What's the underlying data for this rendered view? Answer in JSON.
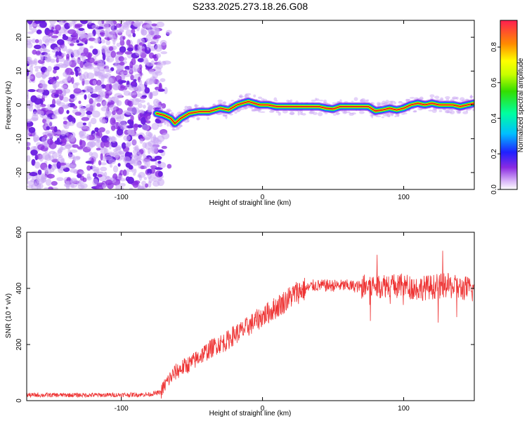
{
  "title": "S233.2025.273.18.26.G08",
  "colors": {
    "snr_line": "#ee3333",
    "noise_dots": "#8a2be2",
    "ridge_core": "#e5141c"
  },
  "chart_data": [
    {
      "type": "heatmap",
      "panel": "spectrogram",
      "xlabel": "Height of straight line (km)",
      "ylabel": "Frequency (Hz)",
      "xlim": [
        -167,
        150
      ],
      "ylim": [
        -25,
        25
      ],
      "xticks": [
        -100,
        0,
        100
      ],
      "xtick_labels": [
        "-100",
        "0",
        "100"
      ],
      "yticks": [
        -20,
        -10,
        0,
        10,
        20
      ],
      "ytick_labels": [
        "-20",
        "-10",
        "0",
        "10",
        "20"
      ],
      "colorbar": {
        "label": "Normalized spectral amplitude",
        "range": [
          0.0,
          0.95
        ],
        "ticks": [
          0.0,
          0.2,
          0.4,
          0.6,
          0.8
        ],
        "tick_labels": [
          "0.0",
          "0.2",
          "0.4",
          "0.6",
          "0.8"
        ],
        "colormap": "rainbow"
      },
      "noise_region_x": [
        -167,
        -72
      ],
      "ridge": {
        "x": [
          -75,
          -70,
          -65,
          -62,
          -58,
          -52,
          -45,
          -38,
          -30,
          -24,
          -18,
          -14,
          -10,
          -6,
          -2,
          4,
          10,
          20,
          30,
          40,
          45,
          50,
          55,
          60,
          70,
          75,
          80,
          85,
          90,
          95,
          100,
          105,
          110,
          115,
          120,
          125,
          130,
          135,
          140,
          145,
          150
        ],
        "freq": [
          -2.5,
          -3,
          -4,
          -5.5,
          -4,
          -2.5,
          -2,
          -2,
          -1,
          -1.5,
          0,
          0.5,
          1,
          0.5,
          0,
          0,
          -0.5,
          -0.5,
          -0.5,
          -0.5,
          -1,
          -1.2,
          -0.5,
          -0.5,
          -0.5,
          -0.5,
          -1.8,
          -1.5,
          -1,
          -1.5,
          -1,
          0,
          0.5,
          0,
          0.5,
          0,
          0,
          0,
          -0.5,
          0,
          0.5
        ]
      }
    },
    {
      "type": "line",
      "panel": "snr",
      "xlabel": "Height of straight line (km)",
      "ylabel": "SNR (10 * v/v)",
      "xlim": [
        -167,
        150
      ],
      "ylim": [
        0,
        600
      ],
      "xticks": [
        -100,
        0,
        100
      ],
      "xtick_labels": [
        "-100",
        "0",
        "100"
      ],
      "yticks": [
        0,
        200,
        400,
        600
      ],
      "ytick_labels": [
        "0",
        "200",
        "400",
        "600"
      ],
      "series": [
        {
          "name": "SNR",
          "x": [
            -167,
            -140,
            -110,
            -80,
            -72,
            -68,
            -62,
            -56,
            -50,
            -44,
            -38,
            -32,
            -26,
            -20,
            -14,
            -10,
            -6,
            0,
            6,
            12,
            16,
            20,
            24,
            28,
            32,
            36,
            40,
            50,
            60,
            70,
            80,
            85,
            90,
            95,
            100,
            110,
            120,
            130,
            140,
            145,
            150
          ],
          "values": [
            20,
            20,
            20,
            22,
            30,
            65,
            100,
            120,
            135,
            160,
            180,
            200,
            210,
            235,
            250,
            265,
            280,
            300,
            320,
            340,
            355,
            370,
            385,
            395,
            400,
            410,
            410,
            410,
            410,
            405,
            410,
            410,
            415,
            405,
            410,
            400,
            405,
            410,
            400,
            400,
            390
          ]
        }
      ]
    }
  ]
}
